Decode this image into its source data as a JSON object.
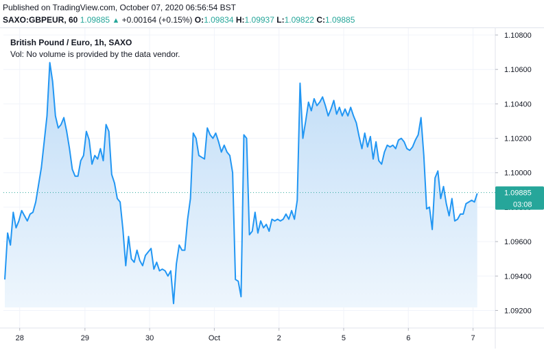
{
  "header": {
    "published": "Published on TradingView.com, October 07, 2020 06:56:54 BST",
    "symbol": "SAXO:GBPEUR, 60",
    "last": "1.09885",
    "arrow": "▲",
    "change": "+0.00164 (+0.15%)",
    "o_label": "O:",
    "o_value": "1.09834",
    "h_label": "H:",
    "h_value": "1.09937",
    "l_label": "L:",
    "l_value": "1.09822",
    "c_label": "C:",
    "c_value": "1.09885"
  },
  "legend": {
    "title": "British Pound / Euro, 1h, SAXO",
    "volume": "Vol: No volume is provided by the data vendor."
  },
  "price_badge": {
    "value": "1.09885",
    "countdown": "03:08"
  },
  "colors": {
    "line": "#2196f3",
    "area_top": "#bfdcf7",
    "area_bottom": "#eef6fd",
    "badge": "#26a69a",
    "up": "#26a69a"
  },
  "chart_data": {
    "type": "area",
    "title": "British Pound / Euro, 1h, SAXO",
    "xlabel": "",
    "ylabel": "",
    "ylim": [
      1.0915,
      1.1082
    ],
    "y_ticks": [
      "1.10800",
      "1.10600",
      "1.10400",
      "1.10200",
      "1.10000",
      "1.09800",
      "1.09600",
      "1.09400",
      "1.09200"
    ],
    "y_tick_values": [
      1.108,
      1.106,
      1.104,
      1.102,
      1.1,
      1.098,
      1.096,
      1.094,
      1.092
    ],
    "x_ticks": [
      {
        "label": "28",
        "t": 5.3
      },
      {
        "label": "29",
        "t": 28.5
      },
      {
        "label": "30",
        "t": 51.5
      },
      {
        "label": "Oct",
        "t": 74.5
      },
      {
        "label": "2",
        "t": 97.5
      },
      {
        "label": "5",
        "t": 120.5
      },
      {
        "label": "6",
        "t": 143.5
      },
      {
        "label": "7",
        "t": 166.5
      }
    ],
    "grid": true,
    "last_value": 1.09885,
    "series": [
      {
        "values": [
          [
            0,
            1.0938
          ],
          [
            1,
            1.0965
          ],
          [
            2,
            1.0958
          ],
          [
            3,
            1.0977
          ],
          [
            4,
            1.0968
          ],
          [
            5,
            1.0972
          ],
          [
            6,
            1.0978
          ],
          [
            7,
            1.0975
          ],
          [
            8,
            1.0972
          ],
          [
            9,
            1.0976
          ],
          [
            10,
            1.0977
          ],
          [
            11,
            1.0983
          ],
          [
            12,
            1.0993
          ],
          [
            13,
            1.1003
          ],
          [
            14,
            1.1018
          ],
          [
            15,
            1.1033
          ],
          [
            16,
            1.1064
          ],
          [
            17,
            1.1053
          ],
          [
            18,
            1.1033
          ],
          [
            19,
            1.1026
          ],
          [
            20,
            1.1028
          ],
          [
            21,
            1.1032
          ],
          [
            22,
            1.1024
          ],
          [
            23,
            1.1014
          ],
          [
            24,
            1.1002
          ],
          [
            25,
            1.0998
          ],
          [
            26,
            1.0998
          ],
          [
            27,
            1.1007
          ],
          [
            28,
            1.101
          ],
          [
            29,
            1.1024
          ],
          [
            30,
            1.1019
          ],
          [
            31,
            1.1005
          ],
          [
            32,
            1.101
          ],
          [
            33,
            1.1008
          ],
          [
            34,
            1.1014
          ],
          [
            35,
            1.1007
          ],
          [
            36,
            1.1028
          ],
          [
            37,
            1.1024
          ],
          [
            38,
            1.0999
          ],
          [
            39,
            1.0994
          ],
          [
            40,
            1.0985
          ],
          [
            41,
            1.0983
          ],
          [
            42,
            1.0967
          ],
          [
            43,
            1.0946
          ],
          [
            44,
            1.0963
          ],
          [
            45,
            1.095
          ],
          [
            46,
            1.0948
          ],
          [
            47,
            1.0955
          ],
          [
            48,
            1.0949
          ],
          [
            49,
            1.0946
          ],
          [
            50,
            1.0952
          ],
          [
            51,
            1.0954
          ],
          [
            52,
            1.0956
          ],
          [
            53,
            1.0944
          ],
          [
            54,
            1.0948
          ],
          [
            55,
            1.0943
          ],
          [
            56,
            1.0944
          ],
          [
            57,
            1.0943
          ],
          [
            58,
            1.094
          ],
          [
            59,
            1.0943
          ],
          [
            60,
            1.0924
          ],
          [
            61,
            1.0947
          ],
          [
            62,
            1.0958
          ],
          [
            63,
            1.0955
          ],
          [
            64,
            1.0955
          ],
          [
            65,
            1.0973
          ],
          [
            66,
            1.0985
          ],
          [
            67,
            1.1023
          ],
          [
            68,
            1.102
          ],
          [
            69,
            1.101
          ],
          [
            70,
            1.1009
          ],
          [
            71,
            1.1008
          ],
          [
            72,
            1.1026
          ],
          [
            73,
            1.1022
          ],
          [
            74,
            1.102
          ],
          [
            75,
            1.1023
          ],
          [
            76,
            1.1018
          ],
          [
            77,
            1.1012
          ],
          [
            78,
            1.1016
          ],
          [
            79,
            1.1012
          ],
          [
            80,
            1.101
          ],
          [
            81,
            1.1
          ],
          [
            82,
            1.0938
          ],
          [
            83,
            1.0937
          ],
          [
            84,
            1.0928
          ],
          [
            85,
            1.1022
          ],
          [
            86,
            1.102
          ],
          [
            87,
            1.0964
          ],
          [
            88,
            1.0966
          ],
          [
            89,
            1.0977
          ],
          [
            90,
            1.0965
          ],
          [
            91,
            1.0972
          ],
          [
            92,
            1.0968
          ],
          [
            93,
            1.097
          ],
          [
            94,
            1.0966
          ],
          [
            95,
            1.0973
          ],
          [
            96,
            1.0972
          ],
          [
            97,
            1.0973
          ],
          [
            98,
            1.0972
          ],
          [
            99,
            1.0973
          ],
          [
            100,
            1.0976
          ],
          [
            101,
            1.0973
          ],
          [
            102,
            1.0978
          ],
          [
            103,
            1.0973
          ],
          [
            104,
            1.0984
          ],
          [
            105,
            1.1052
          ],
          [
            106,
            1.102
          ],
          [
            107,
            1.103
          ],
          [
            108,
            1.1041
          ],
          [
            109,
            1.1036
          ],
          [
            110,
            1.1043
          ],
          [
            111,
            1.1039
          ],
          [
            112,
            1.1041
          ],
          [
            113,
            1.1044
          ],
          [
            114,
            1.1039
          ],
          [
            115,
            1.1033
          ],
          [
            116,
            1.1037
          ],
          [
            117,
            1.1042
          ],
          [
            118,
            1.1034
          ],
          [
            119,
            1.1038
          ],
          [
            120,
            1.1033
          ],
          [
            121,
            1.1037
          ],
          [
            122,
            1.1033
          ],
          [
            123,
            1.1038
          ],
          [
            124,
            1.1033
          ],
          [
            125,
            1.1029
          ],
          [
            126,
            1.1021
          ],
          [
            127,
            1.1014
          ],
          [
            128,
            1.1023
          ],
          [
            129,
            1.1015
          ],
          [
            130,
            1.1021
          ],
          [
            131,
            1.1008
          ],
          [
            132,
            1.1018
          ],
          [
            133,
            1.1007
          ],
          [
            134,
            1.1005
          ],
          [
            135,
            1.1012
          ],
          [
            136,
            1.1016
          ],
          [
            137,
            1.1015
          ],
          [
            138,
            1.1016
          ],
          [
            139,
            1.1014
          ],
          [
            140,
            1.1019
          ],
          [
            141,
            1.102
          ],
          [
            142,
            1.1018
          ],
          [
            143,
            1.1014
          ],
          [
            144,
            1.1013
          ],
          [
            145,
            1.1015
          ],
          [
            146,
            1.1019
          ],
          [
            147,
            1.1022
          ],
          [
            148,
            1.1032
          ],
          [
            149,
            1.101
          ],
          [
            150,
            1.0979
          ],
          [
            151,
            1.098
          ],
          [
            152,
            1.0967
          ],
          [
            153,
            1.0997
          ],
          [
            154,
            1.1001
          ],
          [
            155,
            1.0985
          ],
          [
            156,
            1.0992
          ],
          [
            157,
            1.0982
          ],
          [
            158,
            1.0975
          ],
          [
            159,
            1.0985
          ],
          [
            160,
            1.0972
          ],
          [
            161,
            1.0973
          ],
          [
            162,
            1.0976
          ],
          [
            163,
            1.0976
          ],
          [
            164,
            1.0982
          ],
          [
            165,
            1.0983
          ],
          [
            166,
            1.0984
          ],
          [
            167,
            1.0983
          ],
          [
            168,
            1.0988
          ]
        ]
      }
    ]
  }
}
